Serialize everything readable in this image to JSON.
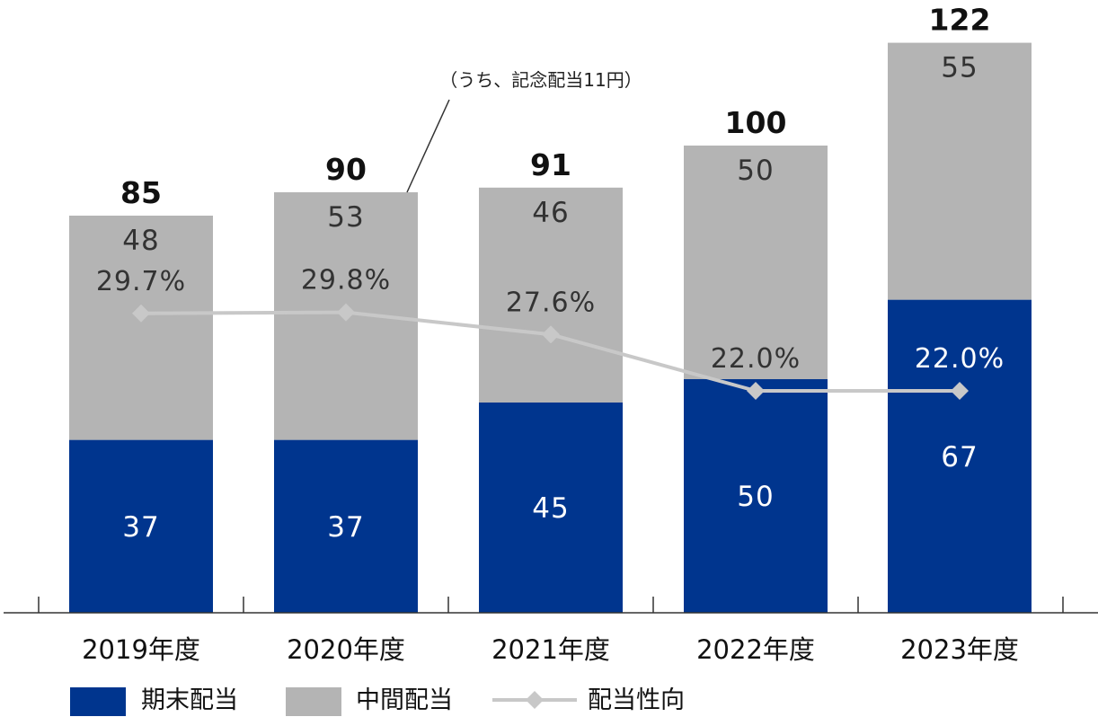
{
  "chart_data": {
    "type": "bar",
    "stacked": true,
    "categories": [
      "2019年度",
      "2020年度",
      "2021年度",
      "2022年度",
      "2023年度"
    ],
    "series": [
      {
        "name": "期末配当",
        "values": [
          37,
          37,
          45,
          50,
          67
        ],
        "color": "#00358e"
      },
      {
        "name": "中間配当",
        "values": [
          48,
          53,
          46,
          50,
          55
        ],
        "color": "#b4b4b4"
      }
    ],
    "totals": [
      85,
      90,
      91,
      100,
      122
    ],
    "line_series": {
      "name": "配当性向",
      "values": [
        29.7,
        29.8,
        27.6,
        22.0,
        22.0
      ],
      "labels": [
        "29.7%",
        "29.8%",
        "27.6%",
        "22.0%",
        "22.0%"
      ],
      "color": "#c8c8c8"
    },
    "annotation": {
      "text": "（うち、記念配当11円）",
      "category_index": 1
    },
    "legend": [
      "期末配当",
      "中間配当",
      "配当性向"
    ],
    "legend_position": "bottom-left",
    "ylim": [
      0,
      122
    ],
    "grid": false,
    "title": "",
    "xlabel": "",
    "ylabel": ""
  }
}
